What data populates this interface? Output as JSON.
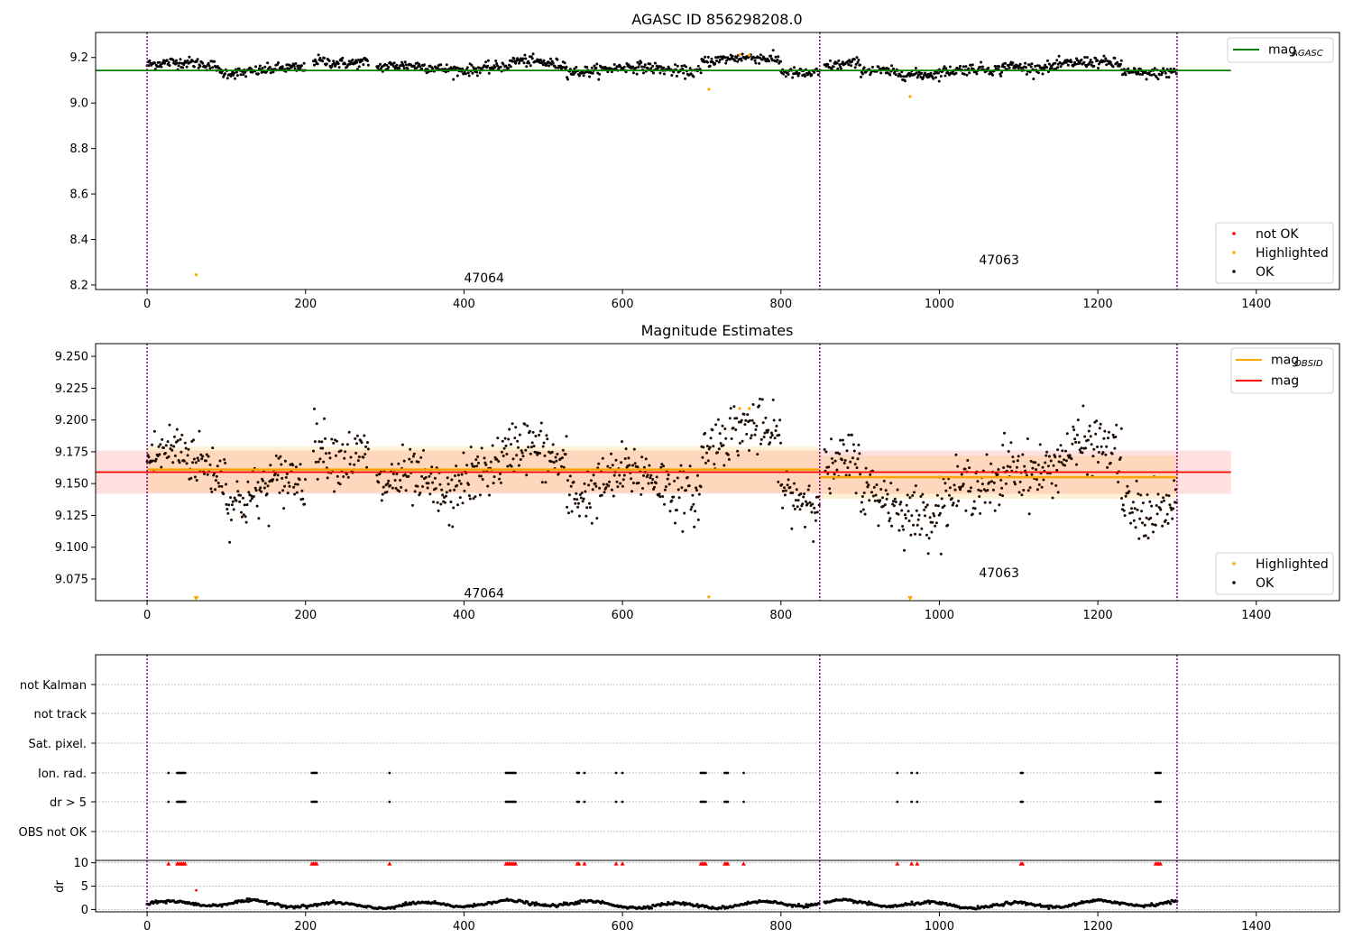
{
  "chart_data": [
    {
      "type": "scatter",
      "title": "AGASC ID 856298208.0",
      "xlim": [
        -65,
        1505
      ],
      "ylim": [
        8.18,
        9.31
      ],
      "x_ticks": [
        0,
        200,
        400,
        600,
        800,
        1000,
        1200,
        1400
      ],
      "y_ticks": [
        8.2,
        8.4,
        8.6,
        8.8,
        9.0,
        9.2
      ],
      "y_tick_labels": [
        "8.2",
        "8.4",
        "8.6",
        "8.8",
        "9.0",
        "9.2"
      ],
      "mag_agasc": 9.143,
      "obs_boundaries": [
        0,
        849,
        1300
      ],
      "obs_labels": [
        {
          "text": "47064",
          "x": 400,
          "y": 8.18
        },
        {
          "text": "47063",
          "x": 1050,
          "y": 8.26
        }
      ],
      "legend_lines": [
        {
          "name": "mag",
          "sub": "AGASC",
          "color": "#008000"
        }
      ],
      "legend_points": [
        {
          "name": "not OK",
          "color": "#ff0000"
        },
        {
          "name": "Highlighted",
          "color": "#ffa500"
        },
        {
          "name": "OK",
          "color": "#000000"
        }
      ],
      "highlighted": [
        [
          62,
          8.245
        ],
        [
          709,
          9.06
        ],
        [
          963,
          9.028
        ],
        [
          748,
          9.212
        ],
        [
          760,
          9.21
        ]
      ],
      "ok_segments": [
        [
          0,
          47,
          9.168
        ],
        [
          47,
          90,
          9.17
        ],
        [
          90,
          200,
          9.143
        ],
        [
          210,
          280,
          9.185
        ],
        [
          290,
          460,
          9.155
        ],
        [
          460,
          530,
          9.175
        ],
        [
          530,
          700,
          9.148
        ],
        [
          700,
          800,
          9.19
        ],
        [
          800,
          849,
          9.14
        ],
        [
          855,
          900,
          9.165
        ],
        [
          900,
          1000,
          9.135
        ],
        [
          1000,
          1080,
          9.14
        ],
        [
          1080,
          1150,
          9.165
        ],
        [
          1150,
          1230,
          9.17
        ],
        [
          1230,
          1300,
          9.14
        ]
      ]
    },
    {
      "type": "scatter",
      "title": "Magnitude Estimates",
      "xlim": [
        -65,
        1505
      ],
      "ylim": [
        9.058,
        9.26
      ],
      "x_ticks": [
        0,
        200,
        400,
        600,
        800,
        1000,
        1200,
        1400
      ],
      "y_ticks": [
        9.075,
        9.1,
        9.125,
        9.15,
        9.175,
        9.2,
        9.225,
        9.25
      ],
      "y_tick_labels": [
        "9.075",
        "9.100",
        "9.125",
        "9.150",
        "9.175",
        "9.200",
        "9.225",
        "9.250"
      ],
      "mag": 9.159,
      "mag_band": [
        9.142,
        9.176
      ],
      "mag_obsid": [
        {
          "x0": 0,
          "x1": 849,
          "value": 9.161,
          "band": [
            9.143,
            9.179
          ]
        },
        {
          "x0": 849,
          "x1": 1300,
          "value": 9.155,
          "band": [
            9.138,
            9.172
          ]
        }
      ],
      "obs_boundaries": [
        0,
        849,
        1300
      ],
      "obs_labels": [
        {
          "text": "47064",
          "x": 400,
          "y": 9.064
        },
        {
          "text": "47063",
          "x": 1050,
          "y": 9.08
        }
      ],
      "legend_lines": [
        {
          "name": "mag",
          "sub": "OBSID",
          "color": "#ffa500"
        },
        {
          "name": "mag",
          "sub": "",
          "color": "#ff0000"
        }
      ],
      "legend_points": [
        {
          "name": "Highlighted",
          "color": "#ffa500"
        },
        {
          "name": "OK",
          "color": "#000000"
        }
      ],
      "highlighted": [
        [
          748,
          9.209
        ],
        [
          760,
          9.209
        ],
        [
          709,
          9.061
        ]
      ],
      "off_scale": [
        62,
        963
      ],
      "ok_segments": [
        [
          0,
          47,
          9.168
        ],
        [
          47,
          100,
          9.165
        ],
        [
          100,
          200,
          9.145
        ],
        [
          210,
          280,
          9.18
        ],
        [
          290,
          390,
          9.145
        ],
        [
          390,
          460,
          9.163
        ],
        [
          460,
          530,
          9.172
        ],
        [
          530,
          700,
          9.15
        ],
        [
          700,
          800,
          9.185
        ],
        [
          800,
          849,
          9.148
        ],
        [
          855,
          900,
          9.162
        ],
        [
          900,
          1000,
          9.135
        ],
        [
          1000,
          1080,
          9.14
        ],
        [
          1080,
          1150,
          9.168
        ],
        [
          1150,
          1230,
          9.172
        ],
        [
          1230,
          1300,
          9.135
        ]
      ]
    },
    {
      "type": "scatter",
      "title": "",
      "xlim": [
        -65,
        1505
      ],
      "categories": [
        "not Kalman",
        "not track",
        "Sat. pixel.",
        "Ion. rad.",
        "dr > 5",
        "OBS not OK"
      ],
      "flag_x": {
        "Ion. rad.": [
          27,
          38,
          40,
          42,
          44,
          46,
          48,
          208,
          210,
          212,
          214,
          306,
          453,
          455,
          457,
          459,
          461,
          463,
          465,
          543,
          545,
          552,
          592,
          600,
          699,
          701,
          703,
          705,
          729,
          731,
          733,
          753,
          947,
          965,
          972,
          1103,
          1105,
          1273,
          1275,
          1277,
          1279
        ],
        "dr > 5": [
          27,
          38,
          40,
          42,
          44,
          46,
          48,
          208,
          210,
          212,
          214,
          306,
          453,
          455,
          457,
          459,
          461,
          463,
          465,
          543,
          545,
          552,
          592,
          600,
          699,
          701,
          703,
          705,
          729,
          731,
          733,
          753,
          947,
          965,
          972,
          1103,
          1105,
          1273,
          1275,
          1277,
          1279
        ]
      },
      "obs_boundaries": [
        0,
        849,
        1300
      ]
    },
    {
      "type": "scatter",
      "title": "",
      "xlim": [
        -65,
        1505
      ],
      "ylim": [
        -0.5,
        10.5
      ],
      "ylabel": "dr",
      "x_ticks": [
        0,
        200,
        400,
        600,
        800,
        1000,
        1200,
        1400
      ],
      "y_ticks": [
        0,
        5,
        10
      ],
      "y_tick_labels": [
        "0",
        "5",
        "10"
      ],
      "clipped_x": [
        27,
        38,
        40,
        42,
        44,
        46,
        48,
        208,
        210,
        212,
        214,
        306,
        453,
        455,
        457,
        459,
        461,
        463,
        465,
        543,
        545,
        552,
        592,
        600,
        699,
        701,
        703,
        705,
        729,
        731,
        733,
        753,
        947,
        965,
        972,
        1103,
        1105,
        1273,
        1275,
        1277,
        1279
      ],
      "extra_points": [
        [
          62,
          4.1
        ]
      ],
      "obs_boundaries": [
        0,
        849,
        1300
      ]
    }
  ]
}
